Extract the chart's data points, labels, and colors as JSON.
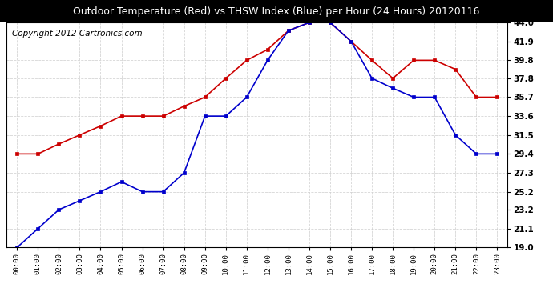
{
  "title": "Outdoor Temperature (Red) vs THSW Index (Blue) per Hour (24 Hours) 20120116",
  "copyright": "Copyright 2012 Cartronics.com",
  "x_labels": [
    "00:00",
    "01:00",
    "02:00",
    "03:00",
    "04:00",
    "05:00",
    "06:00",
    "07:00",
    "08:00",
    "09:00",
    "10:00",
    "11:00",
    "12:00",
    "13:00",
    "14:00",
    "15:00",
    "16:00",
    "17:00",
    "18:00",
    "19:00",
    "20:00",
    "21:00",
    "22:00",
    "23:00"
  ],
  "red_temp": [
    29.4,
    29.4,
    30.5,
    31.5,
    32.5,
    33.6,
    33.6,
    33.6,
    34.7,
    35.7,
    37.8,
    39.8,
    41.0,
    43.1,
    44.0,
    44.0,
    41.9,
    39.8,
    37.8,
    39.8,
    39.8,
    38.8,
    35.7,
    35.7
  ],
  "blue_thsw": [
    19.0,
    21.1,
    23.2,
    24.2,
    25.2,
    26.3,
    25.2,
    25.2,
    27.3,
    33.6,
    33.6,
    35.7,
    39.8,
    43.1,
    44.0,
    44.0,
    41.9,
    37.8,
    36.7,
    35.7,
    35.7,
    31.5,
    29.4,
    29.4
  ],
  "y_ticks": [
    19.0,
    21.1,
    23.2,
    25.2,
    27.3,
    29.4,
    31.5,
    33.6,
    35.7,
    37.8,
    39.8,
    41.9,
    44.0
  ],
  "ylim_min": 19.0,
  "ylim_max": 44.0,
  "red_color": "#CC0000",
  "blue_color": "#0000CC",
  "bg_color": "#ffffff",
  "grid_color": "#cccccc",
  "title_bg_color": "#000000",
  "title_text_color": "#ffffff",
  "title_fontsize": 9,
  "copyright_fontsize": 7.5
}
